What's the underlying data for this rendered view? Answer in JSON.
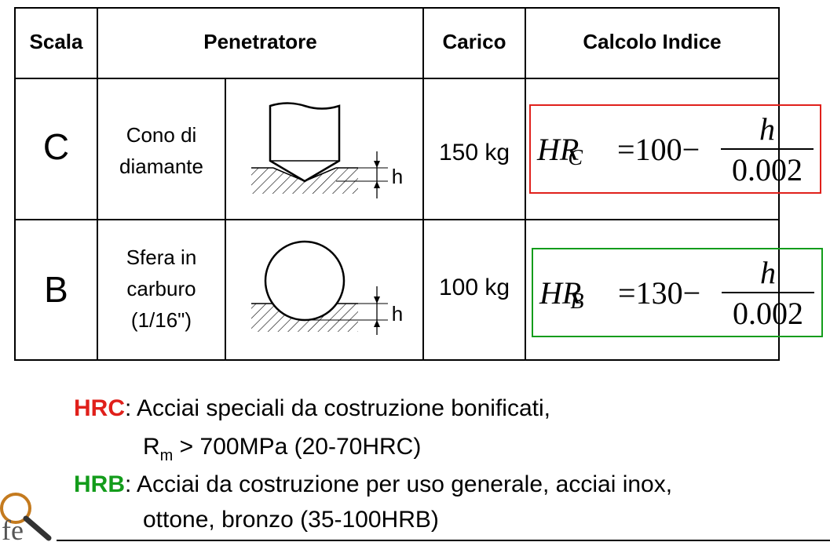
{
  "table": {
    "headers": {
      "scale": "Scala",
      "indenter": "Penetratore",
      "load": "Carico",
      "index": "Calcolo Indice"
    },
    "rows": [
      {
        "scale": "C",
        "indenter_lines": [
          "Cono di",
          "diamante"
        ],
        "h_label": "h",
        "load": "150 kg",
        "formula": {
          "symbol": "HR",
          "subscript": "C",
          "equals": "=",
          "constant": "100",
          "minus": "−",
          "numerator": "h",
          "denominator": "0.002"
        },
        "box_color": "#e0201b"
      },
      {
        "scale": "B",
        "indenter_lines": [
          "Sfera in",
          "carburo",
          "(1/16\")"
        ],
        "h_label": "h",
        "load": "100 kg",
        "formula": {
          "symbol": "HR",
          "subscript": "B",
          "equals": "=",
          "constant": "130",
          "minus": "−",
          "numerator": "h",
          "denominator": "0.002"
        },
        "box_color": "#139c1b"
      }
    ]
  },
  "notes": {
    "hrc": {
      "key": "HRC",
      "key_color": "#e0201b",
      "colon": ":",
      "line1": "Acciai speciali da costruzione bonificati,",
      "line2_prefix": "R",
      "line2_sub": "m",
      "line2_rest": " > 700MPa (20-70HRC)"
    },
    "hrb": {
      "key": "HRB",
      "key_color": "#139c1b",
      "colon": ":",
      "line1": "Acciai da costruzione per uso generale, acciai inox,",
      "line2": "ottone, bronzo (35-100HRB)"
    }
  },
  "logo": {
    "text": "fe",
    "icon": "magnifier-logo-icon"
  }
}
